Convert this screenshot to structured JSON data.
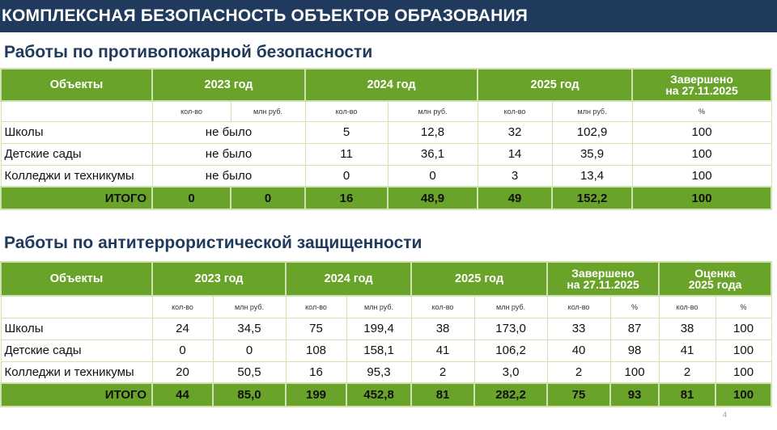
{
  "banner": "КОМПЛЕКСНАЯ БЕЗОПАСНОСТЬ ОБЪЕКТОВ ОБРАЗОВАНИЯ",
  "fire": {
    "title": "Работы по противопожарной безопасности",
    "headers": {
      "objects": "Объекты",
      "y2023": "2023 год",
      "y2024": "2024 год",
      "y2025": "2025 год",
      "done_l1": "Завершено",
      "done_l2": "на 27.11.2025"
    },
    "sub": {
      "qty": "кол-во",
      "mln": "млн руб.",
      "pct": "%"
    },
    "rows": [
      {
        "name": "Школы",
        "y2023": "не было",
        "q2024": "5",
        "m2024": "12,8",
        "q2025": "32",
        "m2025": "102,9",
        "done": "100"
      },
      {
        "name": "Детские сады",
        "y2023": "не было",
        "q2024": "11",
        "m2024": "36,1",
        "q2025": "14",
        "m2025": "35,9",
        "done": "100"
      },
      {
        "name": "Колледжи и техникумы",
        "y2023": "не было",
        "q2024": "0",
        "m2024": "0",
        "q2025": "3",
        "m2025": "13,4",
        "done": "100"
      }
    ],
    "total": {
      "name": "ИТОГО",
      "q2023": "0",
      "m2023": "0",
      "q2024": "16",
      "m2024": "48,9",
      "q2025": "49",
      "m2025": "152,2",
      "done": "100"
    }
  },
  "terror": {
    "title": "Работы по антитеррористической защищенности",
    "headers": {
      "objects": "Объекты",
      "y2023": "2023 год",
      "y2024": "2024 год",
      "y2025": "2025 год",
      "done_l1": "Завершено",
      "done_l2": "на 27.11.2025",
      "est_l1": "Оценка",
      "est_l2": "2025 года"
    },
    "sub": {
      "qty": "кол-во",
      "mln": "млн руб.",
      "pct": "%"
    },
    "rows": [
      {
        "name": "Школы",
        "q2023": "24",
        "m2023": "34,5",
        "q2024": "75",
        "m2024": "199,4",
        "q2025": "38",
        "m2025": "173,0",
        "dq": "33",
        "dp": "87",
        "eq": "38",
        "ep": "100"
      },
      {
        "name": "Детские сады",
        "q2023": "0",
        "m2023": "0",
        "q2024": "108",
        "m2024": "158,1",
        "q2025": "41",
        "m2025": "106,2",
        "dq": "40",
        "dp": "98",
        "eq": "41",
        "ep": "100"
      },
      {
        "name": "Колледжи и техникумы",
        "q2023": "20",
        "m2023": "50,5",
        "q2024": "16",
        "m2024": "95,3",
        "q2025": "2",
        "m2025": "3,0",
        "dq": "2",
        "dp": "100",
        "eq": "2",
        "ep": "100"
      }
    ],
    "total": {
      "name": "ИТОГО",
      "q2023": "44",
      "m2023": "85,0",
      "q2024": "199",
      "m2024": "452,8",
      "q2025": "81",
      "m2025": "282,2",
      "dq": "75",
      "dp": "93",
      "eq": "81",
      "ep": "100"
    }
  },
  "page_number": "4"
}
